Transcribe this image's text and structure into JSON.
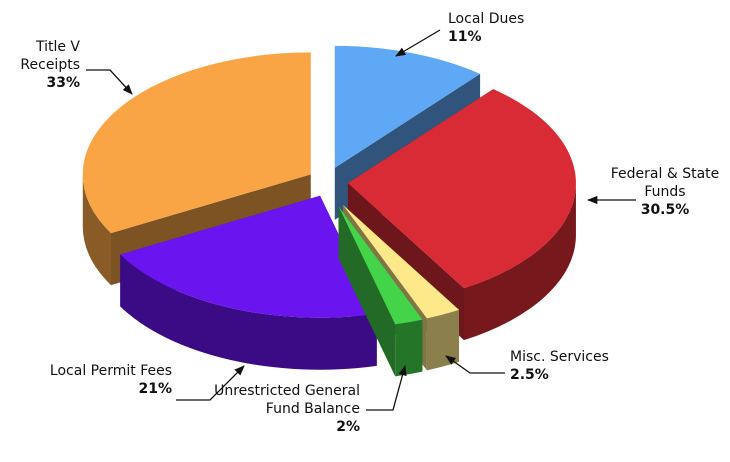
{
  "chart_data": {
    "type": "pie",
    "categories": [
      "Local Dues",
      "Federal & State Funds",
      "Misc. Services",
      "Unrestricted General Fund Balance",
      "Local Permit Fees",
      "Title V Receipts"
    ],
    "values": [
      11,
      30.5,
      2.5,
      2,
      21,
      33
    ],
    "value_labels": [
      "11%",
      "30.5%",
      "2.5%",
      "2%",
      "21%",
      "33%"
    ],
    "colors": [
      "#5fa8f5",
      "#d92b35",
      "#fde98a",
      "#44d44a",
      "#6a14f0",
      "#f9a546"
    ]
  }
}
